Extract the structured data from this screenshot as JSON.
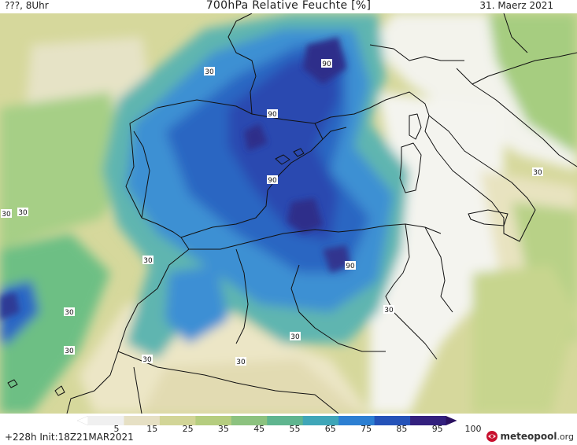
{
  "header": {
    "left": "???, 8Uhr",
    "title": "700hPa Relative Feuchte [%]",
    "date": "31. Maerz 2021"
  },
  "legend": {
    "ticks": [
      "5",
      "15",
      "25",
      "35",
      "45",
      "55",
      "65",
      "75",
      "85",
      "95",
      "100"
    ],
    "colors": [
      "#ffffff",
      "#f0f0f0",
      "#e6e0c4",
      "#d2d597",
      "#b5cd7f",
      "#8cc27f",
      "#5fb58f",
      "#3fa6b8",
      "#2c7fd2",
      "#2452b8",
      "#33207e",
      "#2a1060"
    ]
  },
  "contour_labels": [
    "30",
    "90"
  ],
  "footer": {
    "run": "+228h Init:18Z21MAR2021",
    "brand_main": "meteopool",
    "brand_tld": ".org"
  }
}
